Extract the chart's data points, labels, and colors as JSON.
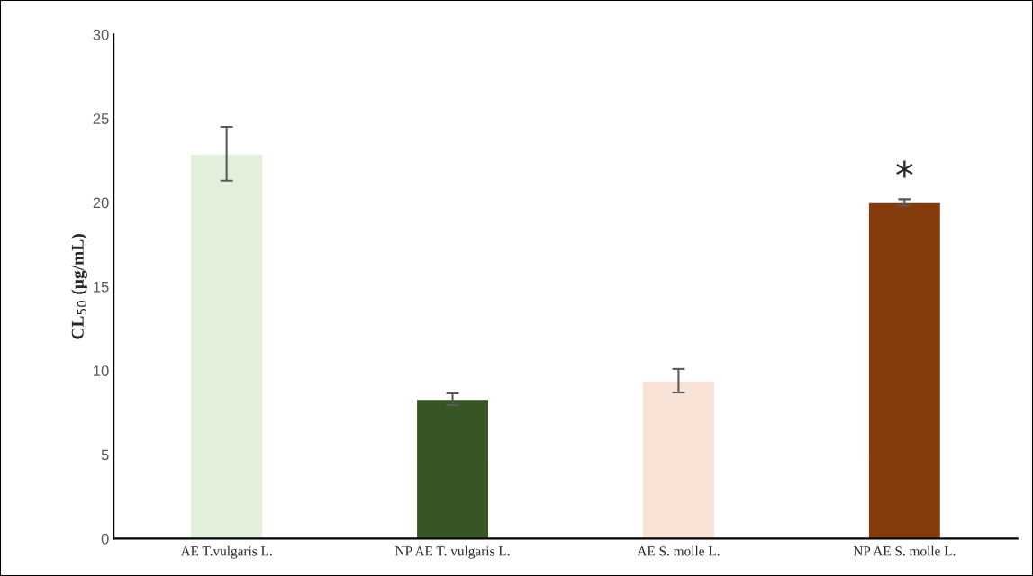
{
  "chart_data": {
    "type": "bar",
    "ylabel": "CL$_{50}$ (µg/mL)",
    "categories": [
      "AE T.vulgaris L.",
      "NP AE T. vulgaris L.",
      "AE S. molle L.",
      "NP AE S. molle L."
    ],
    "values": [
      22.9,
      8.3,
      9.4,
      20.0
    ],
    "errors": [
      1.6,
      0.35,
      0.7,
      0.2
    ],
    "colors": [
      "#e2efda",
      "#375623",
      "#f8e3d6",
      "#843c0c"
    ],
    "ylim": [
      0,
      30
    ],
    "yticks": [
      0,
      5,
      10,
      15,
      20,
      25,
      30
    ],
    "grid": false,
    "annotations": [
      "*"
    ]
  }
}
